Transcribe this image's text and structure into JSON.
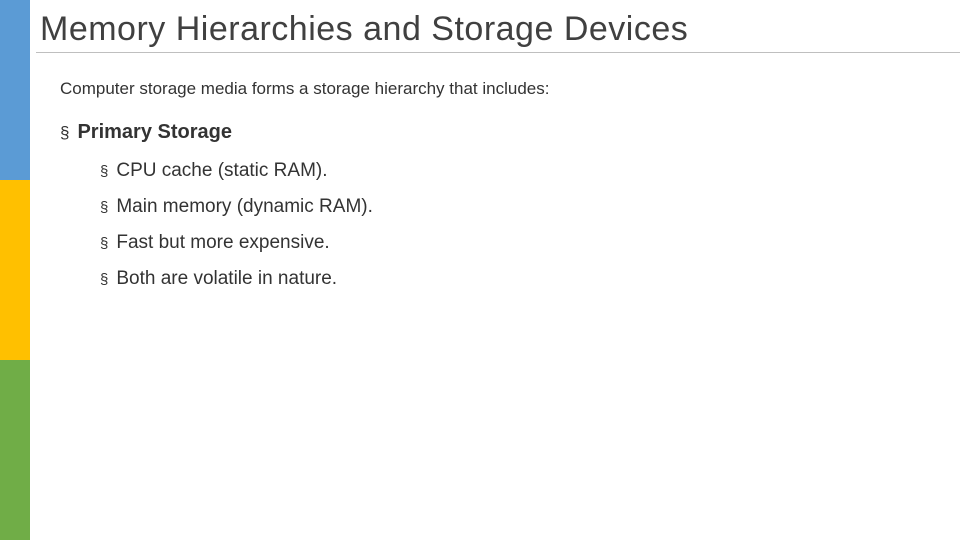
{
  "colors": {
    "sidebar_top": "#5b9bd5",
    "sidebar_mid": "#ffc000",
    "sidebar_bottom": "#70ad47",
    "title_color": "#404040",
    "text_color": "#333333",
    "underline_color": "#bfbfbf",
    "background": "#ffffff"
  },
  "typography": {
    "title_fontsize": 34,
    "intro_fontsize": 17,
    "heading_fontsize": 20,
    "subitem_fontsize": 19,
    "font_family": "Arial"
  },
  "title": "Memory Hierarchies and Storage Devices",
  "intro": "Computer storage media forms a storage hierarchy that includes:",
  "section": {
    "bullet": "§",
    "heading": "Primary Storage",
    "items": [
      {
        "bullet": "§",
        "text": "CPU cache (static RAM)."
      },
      {
        "bullet": "§",
        "text": "Main memory (dynamic RAM)."
      },
      {
        "bullet": "§",
        "text": "Fast but more expensive."
      },
      {
        "bullet": "§",
        "text": "Both are volatile in nature."
      }
    ]
  }
}
